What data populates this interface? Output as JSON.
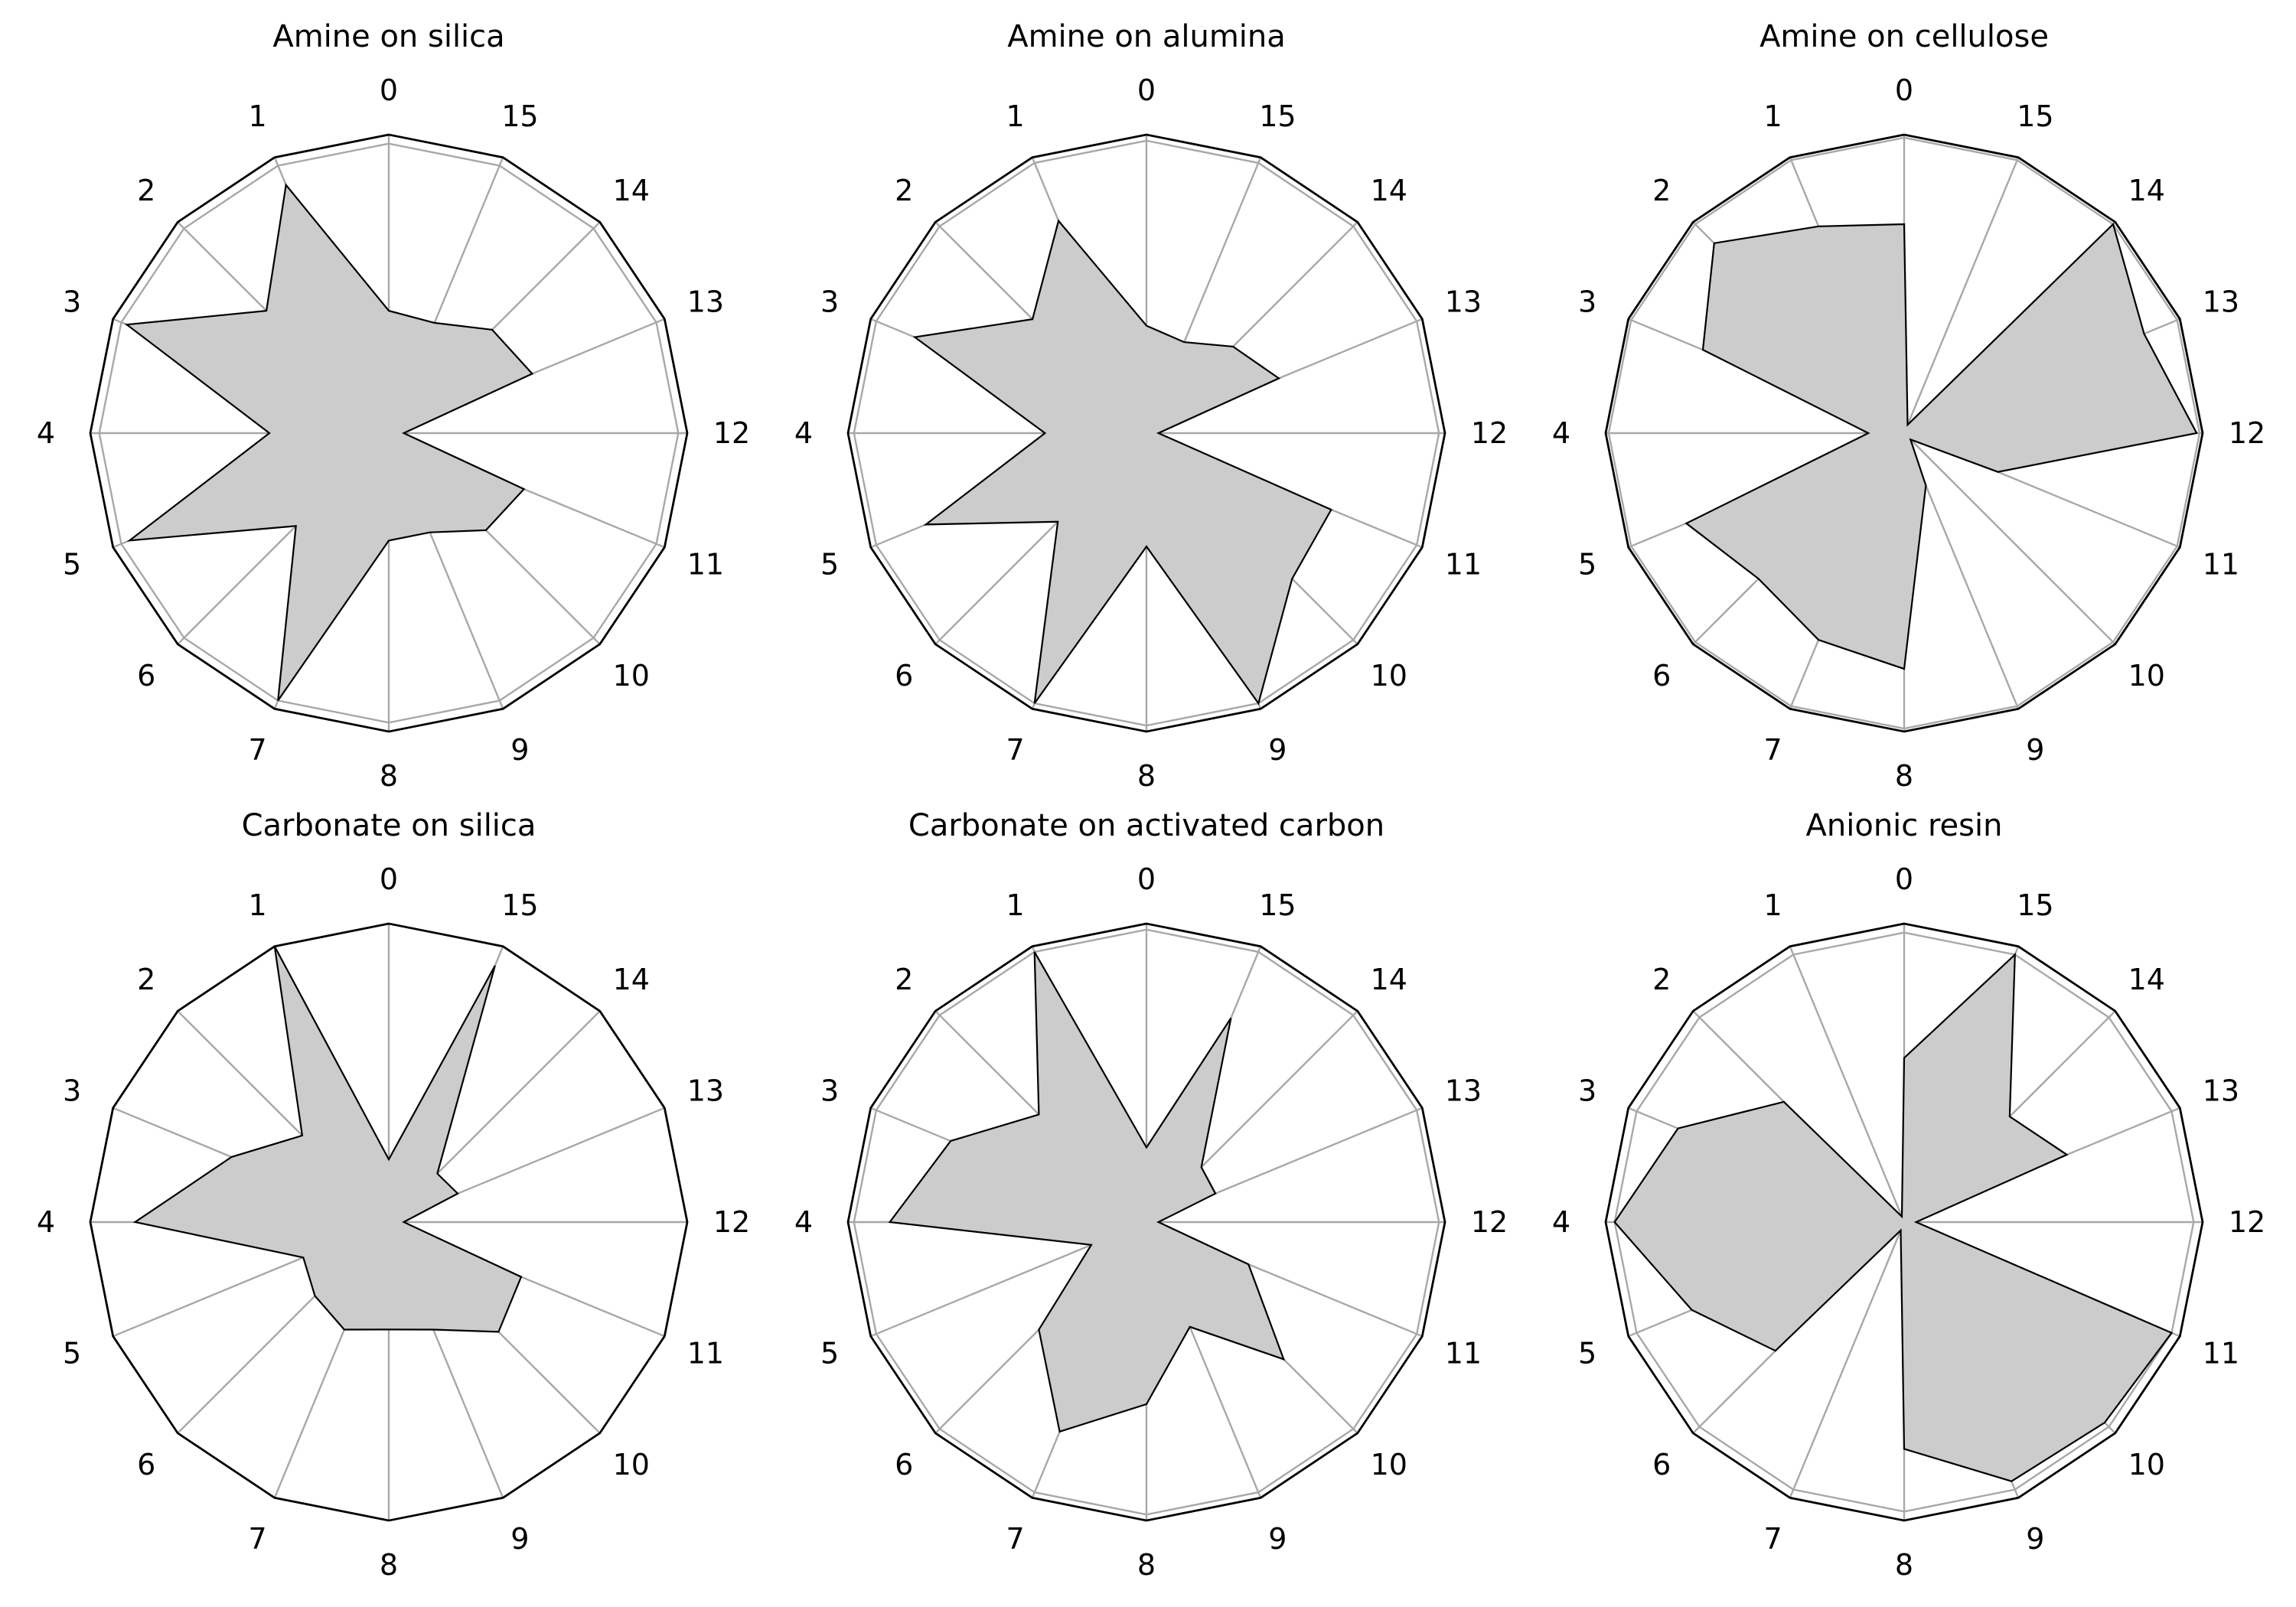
{
  "chart_data": [
    {
      "type": "radar",
      "title": "Amine on silica",
      "categories": [
        "0",
        "1",
        "2",
        "3",
        "4",
        "5",
        "6",
        "7",
        "8",
        "9",
        "10",
        "11",
        "12",
        "13",
        "14",
        "15"
      ],
      "values": [
        0.41,
        0.9,
        0.58,
        0.95,
        0.4,
        0.94,
        0.44,
        0.97,
        0.36,
        0.36,
        0.46,
        0.49,
        0.05,
        0.52,
        0.49,
        0.4
      ],
      "ylim": [
        0,
        1
      ],
      "grid": true
    },
    {
      "type": "radar",
      "title": "Amine on alumina",
      "categories": [
        "0",
        "1",
        "2",
        "3",
        "4",
        "5",
        "6",
        "7",
        "8",
        "9",
        "10",
        "11",
        "12",
        "13",
        "14",
        "15"
      ],
      "values": [
        0.36,
        0.77,
        0.54,
        0.84,
        0.34,
        0.8,
        0.42,
        0.98,
        0.38,
        0.98,
        0.69,
        0.67,
        0.04,
        0.48,
        0.41,
        0.33
      ],
      "ylim": [
        0,
        1
      ],
      "grid": true
    },
    {
      "type": "radar",
      "title": "Amine on cellulose",
      "categories": [
        "0",
        "1",
        "2",
        "3",
        "4",
        "5",
        "6",
        "7",
        "8",
        "9",
        "10",
        "11",
        "12",
        "13",
        "14",
        "15"
      ],
      "values": [
        0.7,
        0.75,
        0.9,
        0.73,
        0.12,
        0.79,
        0.69,
        0.75,
        0.79,
        0.19,
        0.03,
        0.34,
        0.98,
        0.87,
        0.99,
        0.03
      ],
      "ylim": [
        0,
        1
      ],
      "grid": true
    },
    {
      "type": "radar",
      "title": "Carbonate on silica",
      "categories": [
        "0",
        "1",
        "2",
        "3",
        "4",
        "5",
        "6",
        "7",
        "8",
        "9",
        "10",
        "11",
        "12",
        "13",
        "14",
        "15"
      ],
      "values": [
        0.21,
        1.0,
        0.41,
        0.57,
        0.85,
        0.31,
        0.35,
        0.39,
        0.36,
        0.39,
        0.52,
        0.48,
        0.05,
        0.25,
        0.23,
        0.93
      ],
      "ylim": [
        0,
        1
      ],
      "grid": true
    },
    {
      "type": "radar",
      "title": "Carbonate on activated carbon",
      "categories": [
        "0",
        "1",
        "2",
        "3",
        "4",
        "5",
        "6",
        "7",
        "8",
        "9",
        "10",
        "11",
        "12",
        "13",
        "14",
        "15"
      ],
      "values": [
        0.25,
        0.98,
        0.51,
        0.71,
        0.86,
        0.2,
        0.51,
        0.76,
        0.61,
        0.38,
        0.65,
        0.37,
        0.04,
        0.25,
        0.26,
        0.74
      ],
      "ylim": [
        0,
        1
      ],
      "grid": true
    },
    {
      "type": "radar",
      "title": "Anionic resin",
      "categories": [
        "0",
        "1",
        "2",
        "3",
        "4",
        "5",
        "6",
        "7",
        "8",
        "9",
        "10",
        "11",
        "12",
        "13",
        "14",
        "15"
      ],
      "values": [
        0.55,
        0.02,
        0.57,
        0.82,
        0.97,
        0.77,
        0.61,
        0.03,
        0.76,
        0.94,
        0.95,
        0.97,
        0.04,
        0.59,
        0.5,
        0.97
      ],
      "ylim": [
        0,
        1
      ],
      "grid": true
    }
  ]
}
